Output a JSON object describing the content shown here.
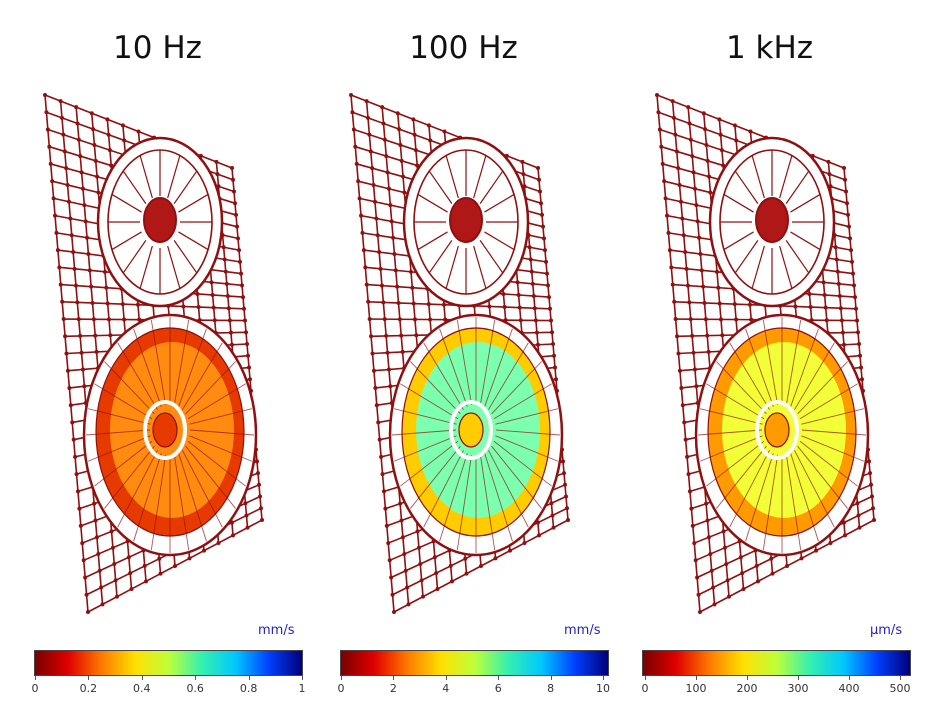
{
  "colors": {
    "wire": "#8f1010",
    "ramp": [
      "#7a0000",
      "#e00000",
      "#ff7a00",
      "#ffe000",
      "#bfff3a",
      "#35f0b0",
      "#00c8ff",
      "#0040ff",
      "#00007a"
    ]
  },
  "panels": [
    {
      "title": "10 Hz",
      "unit": "mm/s",
      "ticks": [
        "0",
        "0.2",
        "0.4",
        "0.6",
        "0.8",
        "1"
      ],
      "woofer_color": "#ff8c10",
      "woofer_rim_color": "#e63a00"
    },
    {
      "title": "100 Hz",
      "unit": "mm/s",
      "ticks": [
        "0",
        "2",
        "4",
        "6",
        "8",
        "10"
      ],
      "woofer_color": "#7dffb0",
      "woofer_rim_color": "#ffcc00"
    },
    {
      "title": "1 kHz",
      "unit": "µm/s",
      "ticks": [
        "0",
        "100",
        "200",
        "300",
        "400",
        "500"
      ],
      "woofer_color": "#f2ff38",
      "woofer_rim_color": "#ff9a00"
    }
  ]
}
